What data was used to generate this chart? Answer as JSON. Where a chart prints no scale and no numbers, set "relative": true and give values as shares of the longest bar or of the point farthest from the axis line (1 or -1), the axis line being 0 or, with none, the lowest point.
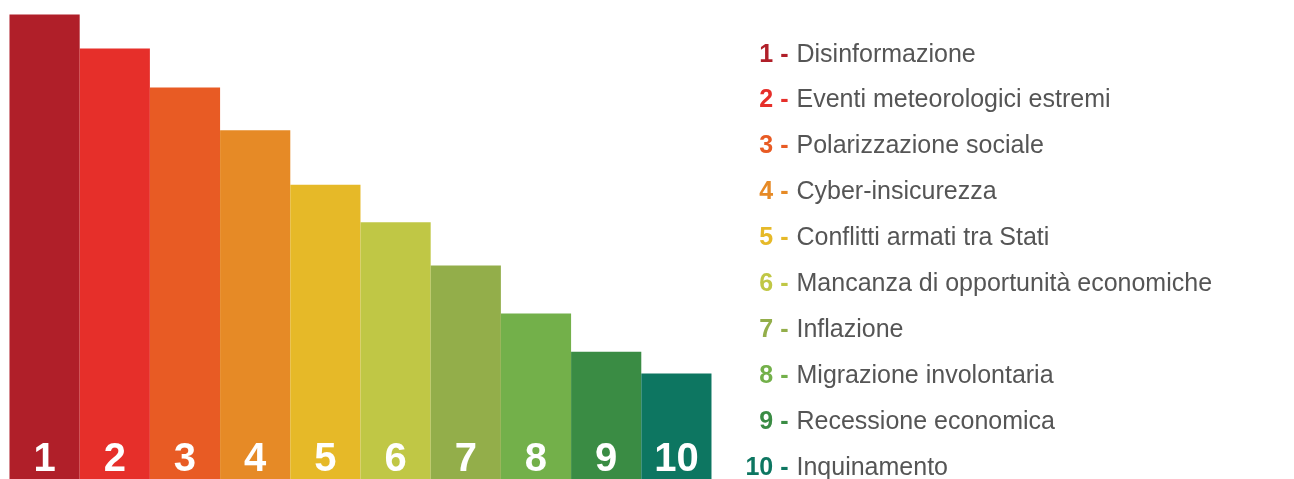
{
  "chart_data": {
    "type": "bar",
    "relative": true,
    "legend": "right",
    "categories": [
      "1",
      "2",
      "3",
      "4",
      "5",
      "6",
      "7",
      "8",
      "9",
      "10"
    ],
    "series": [
      {
        "name": "1 - Disinformazione",
        "color": "#b01f29",
        "values": [
          1,
          null,
          null,
          null,
          null,
          null,
          null,
          null,
          null,
          null
        ]
      },
      {
        "name": "2 - Eventi meteorologici estremi",
        "color": "#e62f2a",
        "values": [
          null,
          0.927,
          null,
          null,
          null,
          null,
          null,
          null,
          null,
          null
        ]
      },
      {
        "name": "3 - Polarizzazione sociale",
        "color": "#e85b24",
        "values": [
          null,
          null,
          0.843,
          null,
          null,
          null,
          null,
          null,
          null,
          null
        ]
      },
      {
        "name": "4 - Cyber-insicurezza",
        "color": "#e68a26",
        "values": [
          null,
          null,
          null,
          0.751,
          null,
          null,
          null,
          null,
          null,
          null
        ]
      },
      {
        "name": "5 - Conflitti armati tra Stati",
        "color": "#e6b928",
        "values": [
          null,
          null,
          null,
          null,
          0.634,
          null,
          null,
          null,
          null,
          null
        ]
      },
      {
        "name": "6 - Mancanza di opportunità economiche",
        "color": "#c0c745",
        "values": [
          null,
          null,
          null,
          null,
          null,
          0.553,
          null,
          null,
          null,
          null
        ]
      },
      {
        "name": "7 - Inflazione",
        "color": "#93ae4a",
        "values": [
          null,
          null,
          null,
          null,
          null,
          null,
          0.46,
          null,
          null,
          null
        ]
      },
      {
        "name": "8 - Migrazione involontaria",
        "color": "#73b04a",
        "values": [
          null,
          null,
          null,
          null,
          null,
          null,
          null,
          0.357,
          null,
          null
        ]
      },
      {
        "name": "9 - Recessione economica",
        "color": "#3a8c44",
        "values": [
          null,
          null,
          null,
          null,
          null,
          null,
          null,
          null,
          0.275,
          null
        ]
      },
      {
        "name": "10 - Inquinamento",
        "color": "#0d7661",
        "values": [
          null,
          null,
          null,
          null,
          null,
          null,
          null,
          null,
          null,
          0.228
        ]
      }
    ]
  }
}
